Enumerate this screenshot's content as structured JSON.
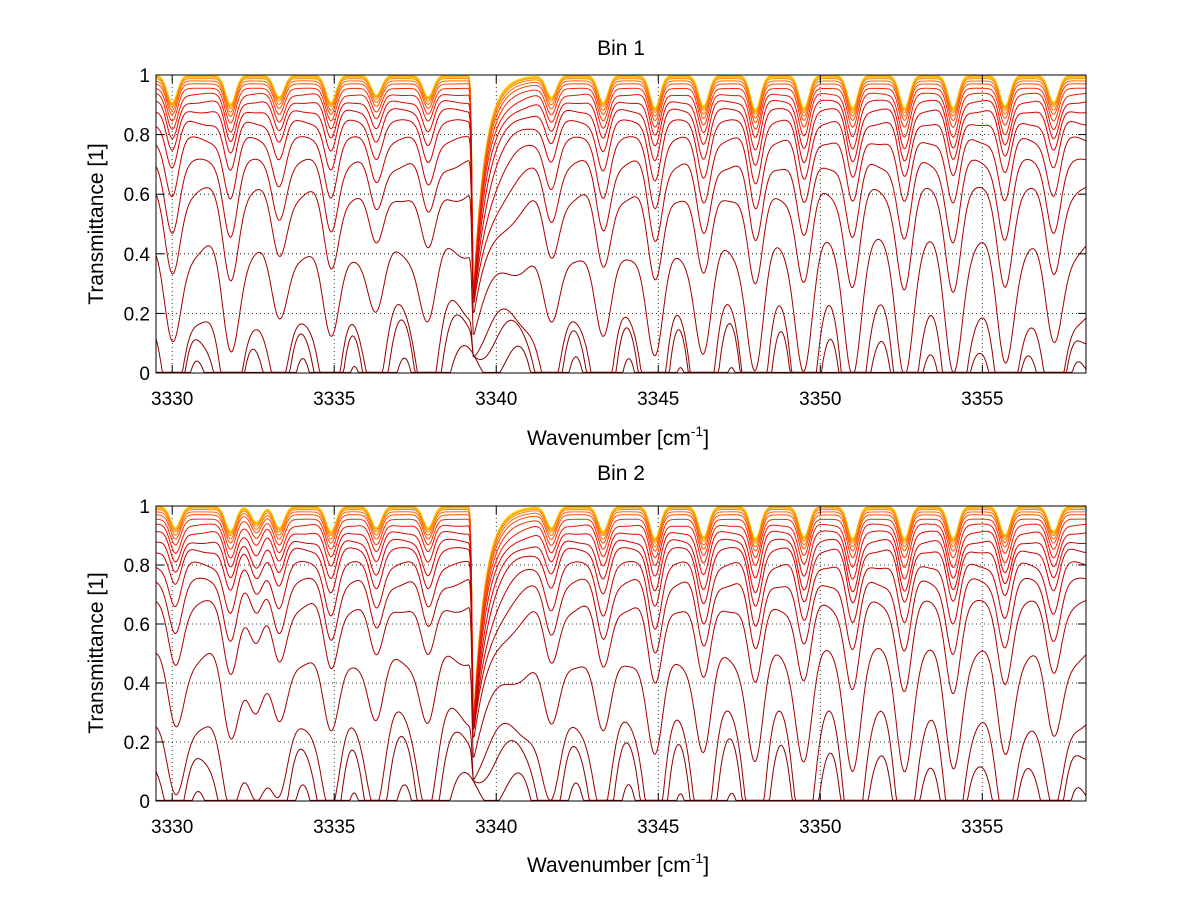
{
  "chart_data": [
    {
      "type": "line",
      "title": "Bin 1",
      "xlabel": "Wavenumber [cm",
      "xlabel_sup": "-1",
      "xlabel_close": "]",
      "ylabel": "Transmittance [1]",
      "xlim": [
        3329.5,
        3358.2
      ],
      "ylim": [
        0,
        1
      ],
      "xticks": [
        3330,
        3335,
        3340,
        3345,
        3350,
        3355
      ],
      "xtick_labels": [
        "3330",
        "3335",
        "3340",
        "3345",
        "3350",
        "3355"
      ],
      "yticks": [
        0,
        0.2,
        0.4,
        0.6,
        0.8,
        1
      ],
      "ytick_labels": [
        "0",
        "0.2",
        "0.4",
        "0.6",
        "0.8",
        "1"
      ],
      "grid": true,
      "grid_style": "dotted",
      "band_edge": 3339.3,
      "absorption_lines": [
        {
          "x": 3330.0,
          "s": 0.75
        },
        {
          "x": 3331.8,
          "s": 0.8
        },
        {
          "x": 3333.3,
          "s": 0.6
        },
        {
          "x": 3334.9,
          "s": 0.75
        },
        {
          "x": 3336.3,
          "s": 0.55
        },
        {
          "x": 3337.9,
          "s": 0.6
        },
        {
          "x": 3341.7,
          "s": 0.6
        },
        {
          "x": 3343.3,
          "s": 0.75
        },
        {
          "x": 3344.9,
          "s": 0.9
        },
        {
          "x": 3346.4,
          "s": 0.85
        },
        {
          "x": 3348.0,
          "s": 0.95
        },
        {
          "x": 3349.5,
          "s": 0.9
        },
        {
          "x": 3351.0,
          "s": 0.9
        },
        {
          "x": 3352.6,
          "s": 0.9
        },
        {
          "x": 3354.1,
          "s": 0.9
        },
        {
          "x": 3355.7,
          "s": 0.85
        },
        {
          "x": 3357.2,
          "s": 0.75
        }
      ],
      "series_levels": [
        0.035,
        0.15,
        0.22,
        0.42,
        0.6,
        0.7,
        0.78,
        0.84,
        0.88,
        0.91,
        0.935,
        0.955,
        0.97,
        0.98,
        0.988,
        0.993,
        0.996,
        0.998,
        0.999
      ],
      "series_colors": [
        "#7f0000",
        "#8a0000",
        "#950000",
        "#a00000",
        "#ab0000",
        "#b60000",
        "#c10000",
        "#cc0000",
        "#d70000",
        "#e20600",
        "#ec1800",
        "#f52e00",
        "#fb4a00",
        "#ff6600",
        "#ff8200",
        "#ff9e00",
        "#ffba00",
        "#ffd200",
        "#ffe300"
      ]
    },
    {
      "type": "line",
      "title": "Bin 2",
      "xlabel": "Wavenumber [cm",
      "xlabel_sup": "-1",
      "xlabel_close": "]",
      "ylabel": "Transmittance [1]",
      "xlim": [
        3329.5,
        3358.2
      ],
      "ylim": [
        0,
        1
      ],
      "xticks": [
        3330,
        3335,
        3340,
        3345,
        3350,
        3355
      ],
      "xtick_labels": [
        "3330",
        "3335",
        "3340",
        "3345",
        "3350",
        "3355"
      ],
      "yticks": [
        0,
        0.2,
        0.4,
        0.6,
        0.8,
        1
      ],
      "ytick_labels": [
        "0",
        "0.2",
        "0.4",
        "0.6",
        "0.8",
        "1"
      ],
      "grid": true,
      "grid_style": "dotted",
      "band_edge": 3339.3,
      "absorption_lines": [
        {
          "x": 3330.1,
          "s": 0.6
        },
        {
          "x": 3331.8,
          "s": 0.7
        },
        {
          "x": 3332.6,
          "s": 0.45
        },
        {
          "x": 3333.3,
          "s": 0.6
        },
        {
          "x": 3334.9,
          "s": 0.7
        },
        {
          "x": 3336.3,
          "s": 0.6
        },
        {
          "x": 3337.9,
          "s": 0.6
        },
        {
          "x": 3341.7,
          "s": 0.6
        },
        {
          "x": 3343.3,
          "s": 0.7
        },
        {
          "x": 3344.9,
          "s": 0.9
        },
        {
          "x": 3346.4,
          "s": 0.85
        },
        {
          "x": 3348.0,
          "s": 0.9
        },
        {
          "x": 3349.5,
          "s": 0.85
        },
        {
          "x": 3351.0,
          "s": 0.9
        },
        {
          "x": 3352.6,
          "s": 0.9
        },
        {
          "x": 3354.1,
          "s": 0.9
        },
        {
          "x": 3355.7,
          "s": 0.8
        },
        {
          "x": 3357.2,
          "s": 0.7
        }
      ],
      "series_levels": [
        0.04,
        0.19,
        0.29,
        0.49,
        0.66,
        0.74,
        0.8,
        0.85,
        0.88,
        0.91,
        0.935,
        0.955,
        0.97,
        0.98,
        0.988,
        0.993,
        0.996,
        0.998,
        0.999
      ],
      "series_colors": [
        "#7f0000",
        "#8a0000",
        "#950000",
        "#a00000",
        "#ab0000",
        "#b60000",
        "#c10000",
        "#cc0000",
        "#d70000",
        "#e20600",
        "#ec1800",
        "#f52e00",
        "#fb4a00",
        "#ff6600",
        "#ff8200",
        "#ff9e00",
        "#ffba00",
        "#ffd200",
        "#ffe300"
      ]
    }
  ]
}
